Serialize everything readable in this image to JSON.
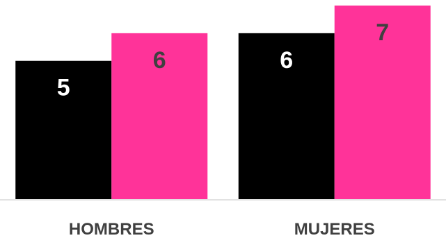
{
  "chart_data": {
    "type": "bar",
    "categories": [
      "HOMBRES",
      "MUJERES"
    ],
    "series": [
      {
        "values": [
          5,
          6
        ],
        "color": "#000000",
        "label_color": "#ffffff"
      },
      {
        "values": [
          6,
          7
        ],
        "color": "#ff3399",
        "label_color": "#404040"
      }
    ],
    "ylim": [
      0,
      7
    ],
    "grid": false,
    "legend": "none",
    "title": "",
    "xlabel": "",
    "ylabel": ""
  }
}
